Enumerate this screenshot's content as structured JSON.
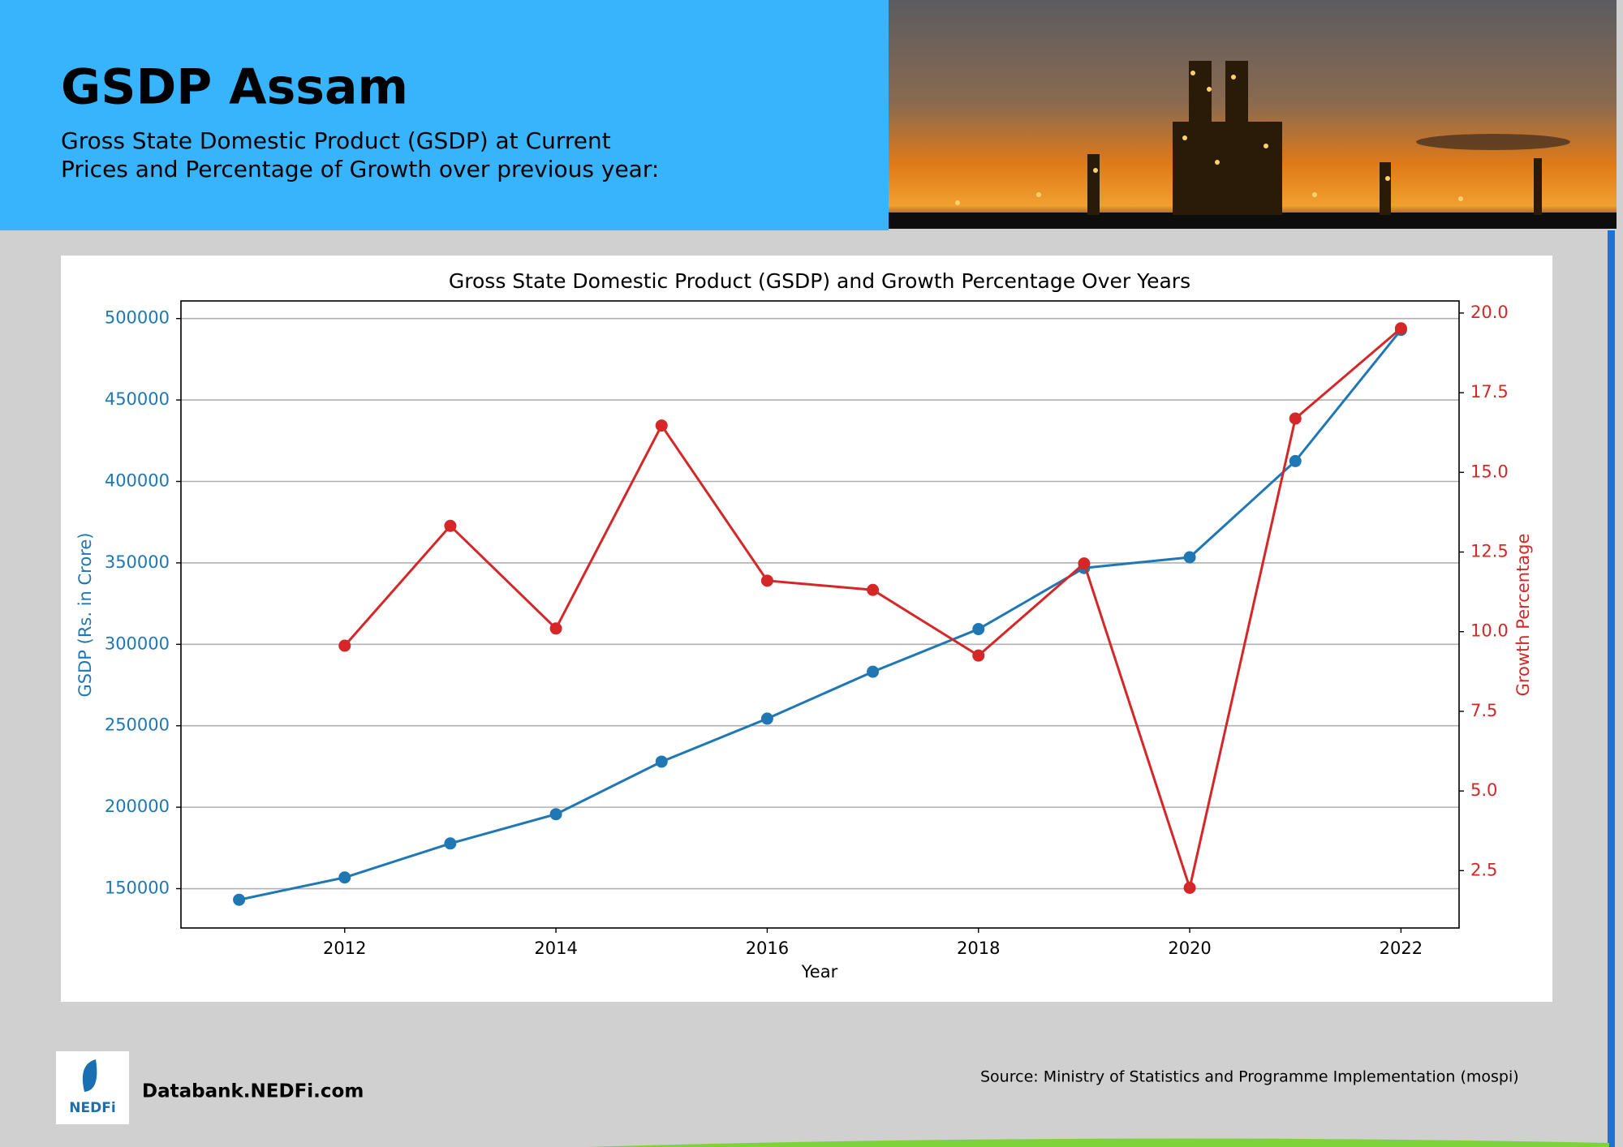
{
  "header": {
    "title": "GSDP Assam",
    "subtitle_lines": [
      "Gross State Domestic Product (GSDP) at Current",
      "Prices and Percentage of Growth over previous year:"
    ]
  },
  "chart_data": {
    "type": "line",
    "title": "Gross State Domestic Product (GSDP) and Growth Percentage Over Years",
    "x_label": "Year",
    "y_label": "GSDP (Rs. in Crore)",
    "y2_label": "Growth Percentage",
    "x": [
      2011,
      2012,
      2013,
      2014,
      2015,
      2016,
      2017,
      2018,
      2019,
      2020,
      2021,
      2022
    ],
    "series": [
      {
        "color": "#1f77b4",
        "values": [
          143175,
          156864,
          177745,
          195723,
          227959,
          254382,
          283165,
          309336,
          346851,
          353440,
          412500,
          493000
        ]
      },
      {
        "color": "#d62728",
        "axis": "y2",
        "values": [
          null,
          9.56,
          13.32,
          10.1,
          16.47,
          11.6,
          11.31,
          9.25,
          12.14,
          1.96,
          16.69,
          19.52
        ]
      }
    ],
    "xlim": [
      2010.45,
      2022.55
    ],
    "xticks": [
      2012,
      2014,
      2016,
      2018,
      2020,
      2022
    ],
    "ylim": [
      125860,
      510800
    ],
    "yticks": [
      150000,
      200000,
      250000,
      300000,
      350000,
      400000,
      450000,
      500000
    ],
    "y2lim": [
      0.7,
      20.38
    ],
    "y2ticks": [
      2.5,
      {
        "value": 5,
        "label": "5.0"
      },
      7.5,
      {
        "value": 10,
        "label": "10.0"
      },
      12.5,
      {
        "value": 15,
        "label": "15.0"
      },
      17.5,
      {
        "value": 20,
        "label": "20.0"
      }
    ],
    "grid": true
  },
  "footer": {
    "logo_text": "NEDFi",
    "site": "Databank.NEDFi.com",
    "source": "Source: Ministry of Statistics and Programme Implementation (mospi)"
  }
}
